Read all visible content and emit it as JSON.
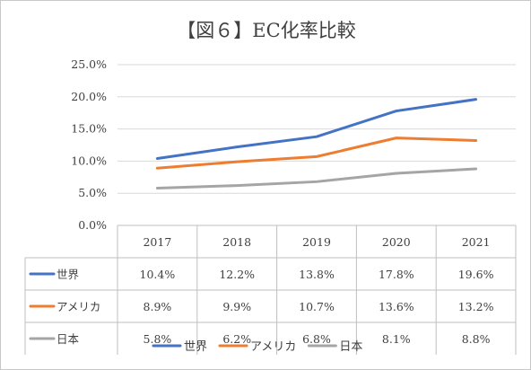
{
  "chart_data": {
    "type": "line",
    "title": "【図６】EC化率比較",
    "categories": [
      "2017",
      "2018",
      "2019",
      "2020",
      "2021"
    ],
    "ylim": [
      0,
      25
    ],
    "yticks": [
      "0.0%",
      "5.0%",
      "10.0%",
      "15.0%",
      "20.0%",
      "25.0%"
    ],
    "grid": true,
    "legend_position": "bottom",
    "series": [
      {
        "name": "世界",
        "values": [
          10.4,
          12.2,
          13.8,
          17.8,
          19.6
        ],
        "labels": [
          "10.4%",
          "12.2%",
          "13.8%",
          "17.8%",
          "19.6%"
        ],
        "color": "#4472C4"
      },
      {
        "name": "アメリカ",
        "values": [
          8.9,
          9.9,
          10.7,
          13.6,
          13.2
        ],
        "labels": [
          "8.9%",
          "9.9%",
          "10.7%",
          "13.6%",
          "13.2%"
        ],
        "color": "#ED7D31"
      },
      {
        "name": "日本",
        "values": [
          5.8,
          6.2,
          6.8,
          8.1,
          8.8
        ],
        "labels": [
          "5.8%",
          "6.2%",
          "6.8%",
          "8.1%",
          "8.8%"
        ],
        "color": "#A5A5A5"
      }
    ]
  }
}
